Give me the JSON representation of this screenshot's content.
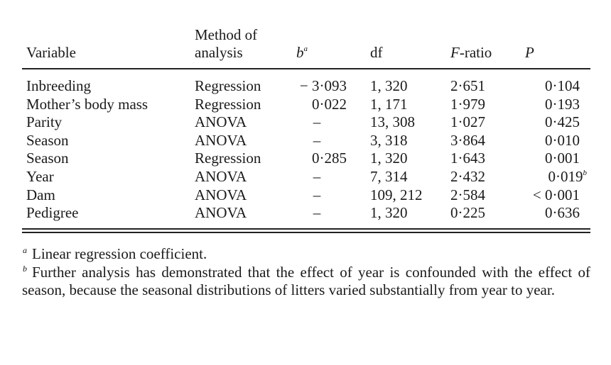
{
  "table": {
    "headers": {
      "variable": "Variable",
      "method_line1": "Method of",
      "method_line2": "analysis",
      "b": "b",
      "b_sup": "a",
      "df": "df",
      "f_ratio_italic": "F",
      "f_ratio_rest": "-ratio",
      "p": "P"
    },
    "rows": [
      {
        "variable": "Inbreeding",
        "method": "Regression",
        "b": "− 3·093",
        "df": "1, 320",
        "f": "2·651",
        "p": "0·104",
        "p_sup": ""
      },
      {
        "variable": "Mother’s body mass",
        "method": "Regression",
        "b": "0·022",
        "df": "1, 171",
        "f": "1·979",
        "p": "0·193",
        "p_sup": ""
      },
      {
        "variable": "Parity",
        "method": "ANOVA",
        "b": "–",
        "df": "13, 308",
        "f": "1·027",
        "p": "0·425",
        "p_sup": ""
      },
      {
        "variable": "Season",
        "method": "ANOVA",
        "b": "–",
        "df": "3, 318",
        "f": "3·864",
        "p": "0·010",
        "p_sup": ""
      },
      {
        "variable": "Season",
        "method": "Regression",
        "b": "0·285",
        "df": "1, 320",
        "f": "1·643",
        "p": "0·001",
        "p_sup": ""
      },
      {
        "variable": "Year",
        "method": "ANOVA",
        "b": "–",
        "df": "7, 314",
        "f": "2·432",
        "p": "0·019",
        "p_sup": "b"
      },
      {
        "variable": "Dam",
        "method": "ANOVA",
        "b": "–",
        "df": "109, 212",
        "f": "2·584",
        "p": "< 0·001",
        "p_sup": ""
      },
      {
        "variable": "Pedigree",
        "method": "ANOVA",
        "b": "–",
        "df": "1, 320",
        "f": "0·225",
        "p": "0·636",
        "p_sup": ""
      }
    ]
  },
  "footnotes": [
    {
      "mark": "a",
      "text": "Linear regression coefficient."
    },
    {
      "mark": "b",
      "text": "Further analysis has demonstrated that the effect of year is confounded with the effect of season, because the seasonal distributions of litters varied substantially from year to year."
    }
  ]
}
